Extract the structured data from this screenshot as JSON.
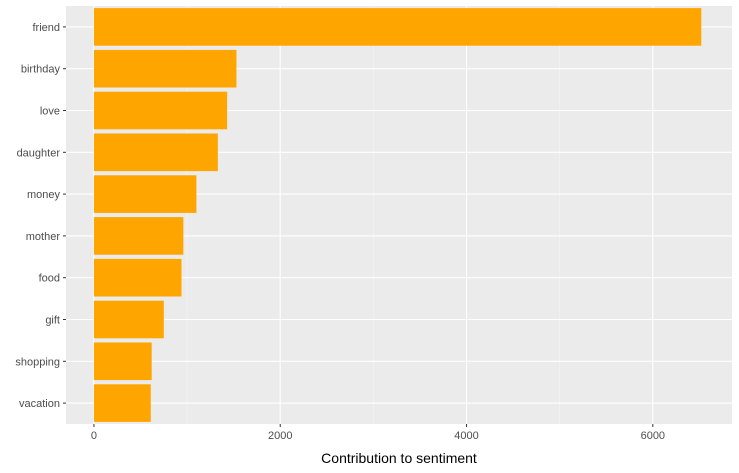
{
  "chart_data": {
    "type": "bar",
    "orientation": "horizontal",
    "categories": [
      "friend",
      "birthday",
      "love",
      "daughter",
      "money",
      "mother",
      "food",
      "gift",
      "shopping",
      "vacation"
    ],
    "values": [
      6520,
      1530,
      1430,
      1330,
      1100,
      960,
      940,
      750,
      620,
      610
    ],
    "title": "",
    "xlabel": "Contribution to sentiment",
    "ylabel": "",
    "xlim": [
      -300,
      6850
    ],
    "x_ticks": [
      0,
      2000,
      4000,
      6000
    ],
    "x_tick_labels": [
      "0",
      "2000",
      "4000",
      "6000"
    ],
    "grid": true,
    "legend": "none",
    "colors": {
      "bar": "#FFA500",
      "panel": "#EBEBEB",
      "grid_major": "#FFFFFF",
      "grid_minor": "#F5F5F5"
    }
  }
}
